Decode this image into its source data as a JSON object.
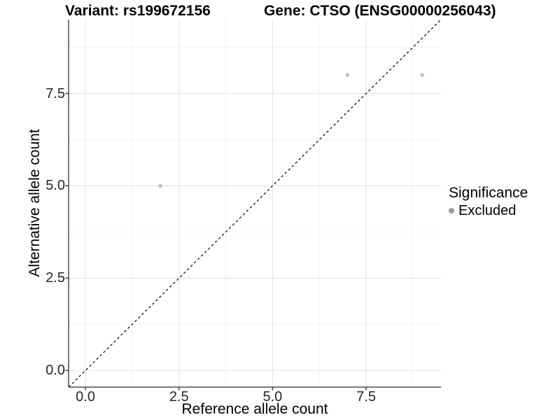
{
  "chart_data": {
    "type": "scatter",
    "title_left": "Variant: rs199672156",
    "title_right": "Gene: CTSO (ENSG00000256043)",
    "xlabel": "Reference allele count",
    "ylabel": "Alternative allele count",
    "xlim": [
      -0.45,
      9.5
    ],
    "ylim": [
      -0.45,
      9.5
    ],
    "x_ticks": [
      0,
      2.5,
      5,
      7.5
    ],
    "y_ticks": [
      0,
      2.5,
      5,
      7.5
    ],
    "x_tick_labels": [
      "0.0",
      "2.5",
      "5.0",
      "7.5"
    ],
    "y_tick_labels": [
      "0.0",
      "2.5",
      "5.0",
      "7.5"
    ],
    "x_minor_ticks": [
      1.25,
      3.75,
      6.25,
      8.75
    ],
    "y_minor_ticks": [
      1.25,
      3.75,
      6.25,
      8.75
    ],
    "grid": true,
    "series": [
      {
        "name": "Excluded",
        "color": "#bdbdbd",
        "points": [
          [
            2,
            5
          ],
          [
            7,
            8
          ],
          [
            9,
            8
          ]
        ]
      }
    ],
    "reference_line": {
      "slope": 1,
      "intercept": 0,
      "style": "dashed",
      "color": "#000000"
    },
    "legend": {
      "position": "right",
      "title": "Significance",
      "entries": [
        {
          "label": "Excluded",
          "color": "#9e9e9e"
        }
      ]
    },
    "colors": {
      "axis_line": "#4d4d4d",
      "tick_mark": "#333333",
      "grid_major": "#e6e6e6",
      "grid_minor": "#f2f2f2",
      "point": "#bdbdbd",
      "text": "#262626"
    }
  }
}
